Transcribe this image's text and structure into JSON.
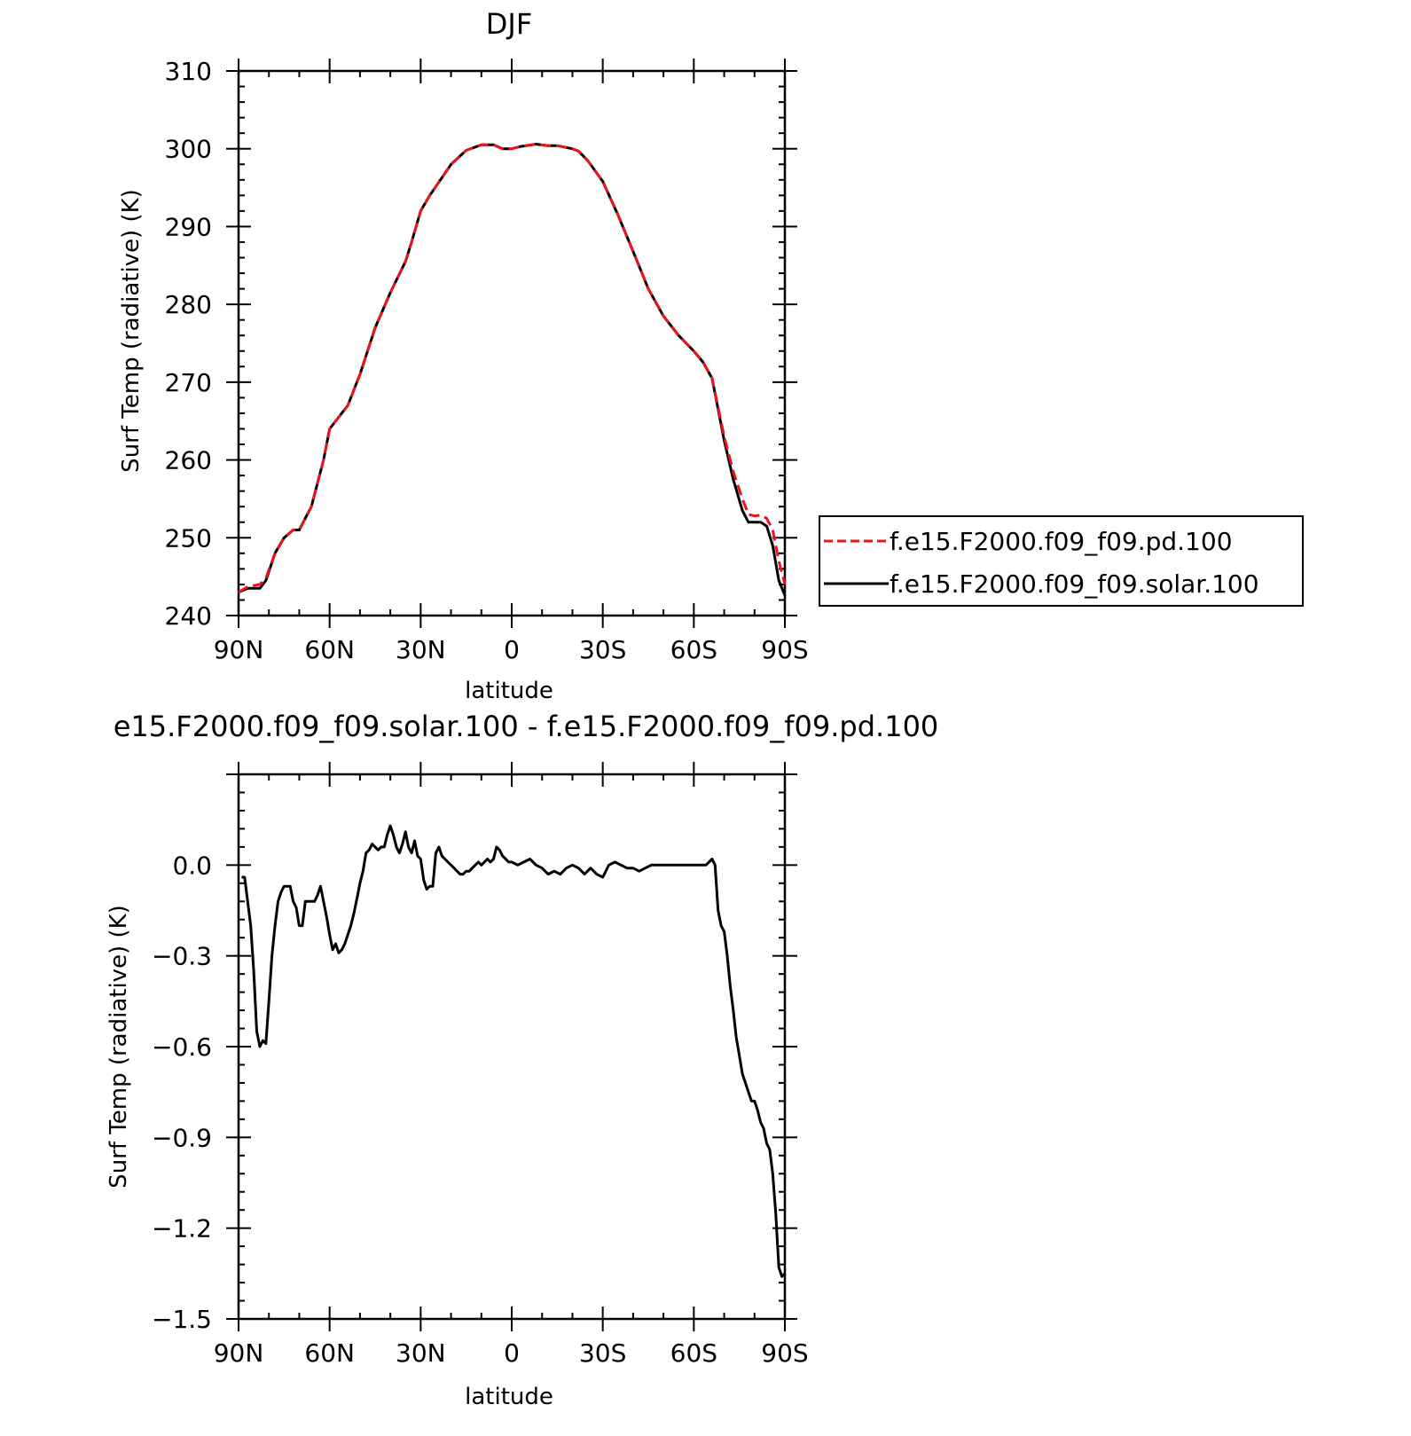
{
  "chart_data": [
    {
      "type": "line",
      "title": "DJF",
      "xlabel": "latitude",
      "ylabel": "Surf Temp (radiative) (K)",
      "xlim": [
        90,
        -90
      ],
      "ylim": [
        240,
        310
      ],
      "x_ticks": [
        90,
        60,
        30,
        0,
        -30,
        -60,
        -90
      ],
      "x_tick_labels": [
        "90N",
        "60N",
        "30N",
        "0",
        "30S",
        "60S",
        "90S"
      ],
      "y_ticks": [
        240,
        250,
        260,
        270,
        280,
        290,
        300,
        310
      ],
      "y_tick_labels": [
        "240",
        "250",
        "260",
        "270",
        "280",
        "290",
        "300",
        "310"
      ],
      "legend_position": "right",
      "grid": false,
      "series": [
        {
          "name": "f.e15.F2000.f09_f09.pd.100",
          "color": "#e8141e",
          "style": "dashed",
          "x": [
            90,
            87,
            83,
            81,
            78,
            75,
            72,
            70,
            66,
            62,
            60,
            57,
            54,
            50,
            45,
            40,
            35,
            33,
            30,
            27,
            20,
            15,
            10,
            6,
            3,
            0,
            -3,
            -8,
            -12,
            -15,
            -20,
            -22,
            -25,
            -30,
            -35,
            -40,
            -45,
            -50,
            -55,
            -60,
            -63,
            -66,
            -70,
            -73,
            -76,
            -78,
            -80,
            -82,
            -84,
            -86,
            -88,
            -90
          ],
          "y": [
            243,
            243.7,
            244,
            244.8,
            248,
            250,
            251,
            251,
            254,
            260,
            264,
            265.5,
            267,
            271,
            277,
            281.5,
            285.5,
            288,
            292,
            294,
            298,
            299.8,
            300.5,
            300.5,
            300,
            300,
            300.3,
            300.6,
            300.4,
            300.4,
            300,
            299.7,
            298.5,
            295.8,
            291.5,
            286.8,
            282,
            278.5,
            276,
            274,
            272.6,
            270.5,
            263,
            258.5,
            255,
            253,
            252.8,
            252.9,
            252.5,
            251,
            247,
            244
          ]
        },
        {
          "name": "f.e15.F2000.f09_f09.solar.100",
          "color": "#000000",
          "style": "solid",
          "x": [
            90,
            87,
            83,
            81,
            78,
            75,
            72,
            70,
            66,
            62,
            60,
            57,
            54,
            50,
            45,
            40,
            35,
            33,
            30,
            27,
            20,
            15,
            10,
            6,
            3,
            0,
            -3,
            -8,
            -12,
            -15,
            -20,
            -22,
            -25,
            -30,
            -35,
            -40,
            -45,
            -50,
            -55,
            -60,
            -63,
            -66,
            -70,
            -73,
            -76,
            -78,
            -80,
            -82,
            -84,
            -86,
            -88,
            -90
          ],
          "y": [
            243,
            243.5,
            243.5,
            244.5,
            248,
            250,
            251,
            251,
            254,
            260,
            264,
            265.5,
            267,
            271,
            277,
            281.5,
            285.5,
            288,
            292,
            294,
            298,
            299.8,
            300.5,
            300.5,
            300,
            300,
            300.3,
            300.6,
            300.4,
            300.4,
            300,
            299.7,
            298.5,
            295.8,
            291.5,
            286.8,
            282,
            278.5,
            276,
            274,
            272.6,
            270.5,
            262.5,
            257.5,
            253.5,
            252,
            252,
            252,
            251.5,
            249,
            244.5,
            242.6
          ]
        }
      ]
    },
    {
      "type": "line",
      "title": "e15.F2000.f09_f09.solar.100 - f.e15.F2000.f09_f09.pd.100",
      "xlabel": "latitude",
      "ylabel": "Surf Temp (radiative) (K)",
      "xlim": [
        90,
        -90
      ],
      "ylim": [
        -1.5,
        0.3
      ],
      "x_ticks": [
        90,
        60,
        30,
        0,
        -30,
        -60,
        -90
      ],
      "x_tick_labels": [
        "90N",
        "60N",
        "30N",
        "0",
        "30S",
        "60S",
        "90S"
      ],
      "y_ticks": [
        -1.5,
        -1.2,
        -0.9,
        -0.6,
        -0.3,
        0.0
      ],
      "y_tick_labels": [
        "−1.5",
        "−1.2",
        "−0.9",
        "−0.6",
        "−0.3",
        "0.0"
      ],
      "grid": false,
      "series": [
        {
          "color": "#000000",
          "style": "solid",
          "x": [
            89,
            88,
            86,
            85,
            84,
            83,
            82,
            81,
            80,
            79,
            78,
            77,
            76,
            75,
            74,
            73,
            72,
            71,
            70,
            69,
            68,
            67,
            66,
            65,
            64,
            63,
            62,
            61,
            60,
            59,
            58,
            57,
            56,
            55,
            54,
            53,
            52,
            51,
            50,
            49,
            48,
            47,
            46,
            45,
            44,
            43,
            42,
            41,
            40,
            39,
            38,
            37,
            36,
            35,
            34,
            33,
            32,
            31,
            30,
            29,
            28,
            27,
            26,
            25,
            24,
            23,
            22,
            21,
            20,
            19,
            18,
            17,
            16,
            15,
            14,
            13,
            12,
            11,
            10,
            9,
            8,
            7,
            6,
            5,
            4,
            3,
            2,
            1,
            0,
            -2,
            -4,
            -6,
            -8,
            -10,
            -12,
            -14,
            -16,
            -18,
            -20,
            -22,
            -24,
            -26,
            -28,
            -30,
            -32,
            -34,
            -36,
            -38,
            -40,
            -42,
            -44,
            -46,
            -48,
            -50,
            -52,
            -54,
            -56,
            -58,
            -60,
            -62,
            -64,
            -65,
            -66,
            -67,
            -68,
            -69,
            -70,
            -71,
            -72,
            -73,
            -74,
            -75,
            -76,
            -77,
            -78,
            -79,
            -80,
            -81,
            -82,
            -83,
            -84,
            -85,
            -86,
            -87,
            -88,
            -89,
            -90
          ],
          "y": [
            -0.04,
            -0.04,
            -0.2,
            -0.35,
            -0.55,
            -0.6,
            -0.58,
            -0.59,
            -0.45,
            -0.3,
            -0.2,
            -0.12,
            -0.09,
            -0.07,
            -0.07,
            -0.07,
            -0.12,
            -0.14,
            -0.2,
            -0.2,
            -0.12,
            -0.12,
            -0.12,
            -0.12,
            -0.1,
            -0.07,
            -0.12,
            -0.17,
            -0.23,
            -0.28,
            -0.26,
            -0.29,
            -0.28,
            -0.26,
            -0.23,
            -0.2,
            -0.16,
            -0.11,
            -0.06,
            -0.02,
            0.04,
            0.05,
            0.07,
            0.06,
            0.05,
            0.06,
            0.06,
            0.1,
            0.13,
            0.1,
            0.06,
            0.04,
            0.07,
            0.11,
            0.06,
            0.04,
            0.08,
            0.03,
            0.02,
            -0.05,
            -0.08,
            -0.07,
            -0.07,
            0.04,
            0.06,
            0.03,
            0.02,
            0.01,
            0.0,
            -0.01,
            -0.02,
            -0.03,
            -0.03,
            -0.02,
            -0.02,
            -0.01,
            0.0,
            0.01,
            0.0,
            0.01,
            0.02,
            0.01,
            0.02,
            0.06,
            0.05,
            0.03,
            0.02,
            0.01,
            0.01,
            0.0,
            0.01,
            0.02,
            0.0,
            -0.01,
            -0.03,
            -0.02,
            -0.03,
            -0.01,
            0.0,
            -0.01,
            -0.03,
            -0.01,
            -0.03,
            -0.04,
            0.0,
            0.01,
            0.0,
            -0.01,
            -0.01,
            -0.02,
            -0.01,
            0.0,
            0.0,
            0.0,
            0.0,
            0.0,
            0.0,
            0.0,
            0.0,
            0.0,
            0.0,
            0.01,
            0.02,
            0.0,
            -0.15,
            -0.2,
            -0.22,
            -0.3,
            -0.4,
            -0.48,
            -0.57,
            -0.63,
            -0.69,
            -0.72,
            -0.75,
            -0.78,
            -0.78,
            -0.81,
            -0.85,
            -0.87,
            -0.92,
            -0.94,
            -1.02,
            -1.15,
            -1.33,
            -1.36,
            -1.35
          ]
        }
      ]
    }
  ]
}
